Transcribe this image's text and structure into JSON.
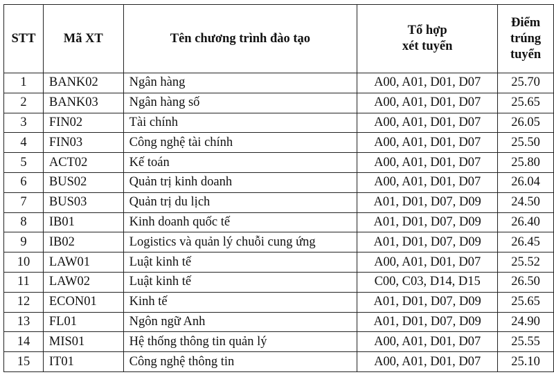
{
  "headers": [
    "STT",
    "Mã XT",
    "Tên chương trình đào tạo",
    [
      "Tổ hợp",
      "xét tuyển"
    ],
    [
      "Điểm",
      "trúng",
      "tuyển"
    ]
  ],
  "rows": [
    [
      "1",
      "BANK02",
      "Ngân hàng",
      "A00, A01, D01, D07",
      "25.70"
    ],
    [
      "2",
      "BANK03",
      "Ngân hàng số",
      "A00, A01, D01, D07",
      "25.65"
    ],
    [
      "3",
      "FIN02",
      "Tài chính",
      "A00, A01, D01, D07",
      "26.05"
    ],
    [
      "4",
      "FIN03",
      "Công nghệ tài chính",
      "A00, A01, D01, D07",
      "25.50"
    ],
    [
      "5",
      "ACT02",
      "Kế toán",
      "A00, A01, D01, D07",
      "25.80"
    ],
    [
      "6",
      "BUS02",
      "Quản trị kinh doanh",
      "A00, A01, D01, D07",
      "26.04"
    ],
    [
      "7",
      "BUS03",
      "Quản trị du lịch",
      "A01, D01, D07, D09",
      "24.50"
    ],
    [
      "8",
      "IB01",
      "Kinh doanh quốc tế",
      "A01, D01, D07, D09",
      "26.40"
    ],
    [
      "9",
      "IB02",
      "Logistics và quản lý chuỗi cung ứng",
      "A01, D01, D07, D09",
      "26.45"
    ],
    [
      "10",
      "LAW01",
      "Luật kinh tế",
      "A00, A01, D01, D07",
      "25.52"
    ],
    [
      "11",
      "LAW02",
      "Luật kinh tế",
      "C00, C03, D14, D15",
      "26.50"
    ],
    [
      "12",
      "ECON01",
      "Kinh tế",
      "A01, D01, D07, D09",
      "25.65"
    ],
    [
      "13",
      "FL01",
      "Ngôn ngữ Anh",
      "A01, D01, D07, D09",
      "24.90"
    ],
    [
      "14",
      "MIS01",
      "Hệ thống thông tin quản lý",
      "A00, A01, D01, D07",
      "25.55"
    ],
    [
      "15",
      "IT01",
      "Công nghệ thông tin",
      "A00, A01, D01, D07",
      "25.10"
    ]
  ]
}
